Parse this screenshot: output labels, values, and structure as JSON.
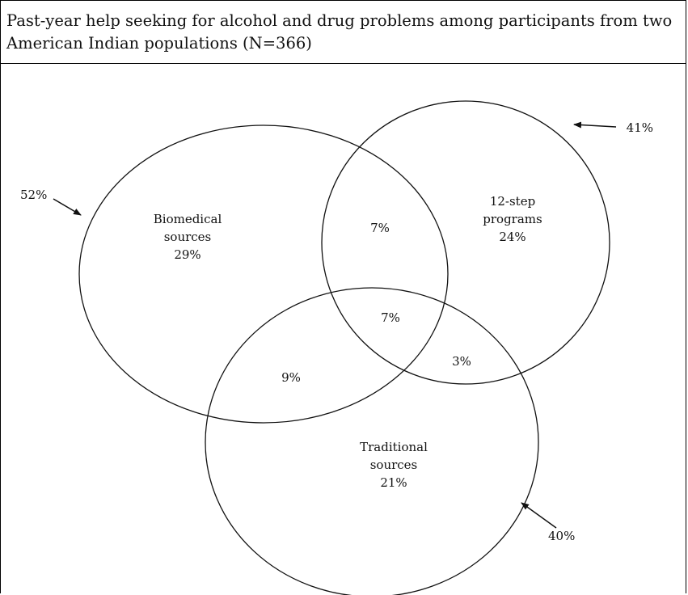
{
  "title": "Past-year help seeking for alcohol and drug problems among participants from two American Indian populations (N=366)",
  "sets": [
    {
      "id": "biomedical",
      "label_lines": [
        "Biomedical",
        "sources"
      ],
      "unique_value": "29%",
      "total": "52%"
    },
    {
      "id": "twelve-step",
      "label_lines": [
        "12-step",
        "programs"
      ],
      "unique_value": "24%",
      "total": "41%"
    },
    {
      "id": "traditional",
      "label_lines": [
        "Traditional",
        "sources"
      ],
      "unique_value": "21%",
      "total": "40%"
    }
  ],
  "intersections": {
    "biomedical_twelve_step": "7%",
    "all_three": "7%",
    "biomedical_traditional": "9%",
    "twelve_step_traditional": "3%"
  }
}
